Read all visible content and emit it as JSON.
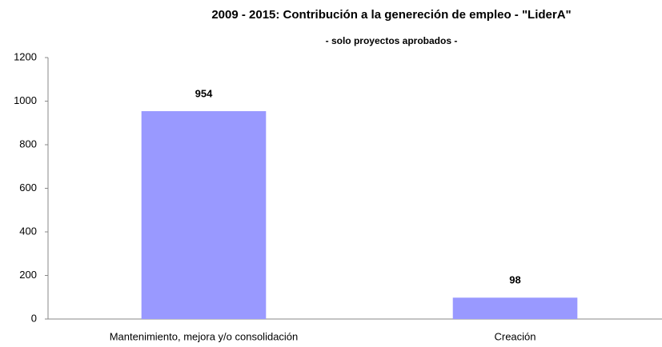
{
  "chart_data": {
    "type": "bar",
    "title": "2009 - 2015: Contribución a la genereción de empleo - \"LiderA\"",
    "subtitle": "- solo proyectos aprobados -",
    "categories": [
      "Mantenimiento, mejora y/o consolidación",
      "Creación"
    ],
    "values": [
      954,
      98
    ],
    "color": "#9999ff",
    "ylim": [
      0,
      1200
    ],
    "yticks": [
      0,
      200,
      400,
      600,
      800,
      1000,
      1200
    ],
    "grid": false
  }
}
